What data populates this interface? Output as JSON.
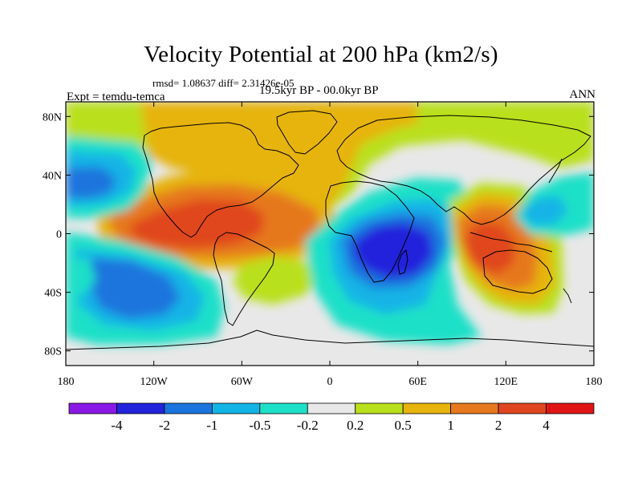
{
  "title": "Velocity Potential at 200 hPa (km2/s)",
  "stats": "rmsd= 1.08637 diff= 2.31426e-05",
  "experiment": "Expt = temdu-temca",
  "period": "19.5kyr BP - 00.0kyr BP",
  "season": "ANN",
  "map": {
    "projection": "cylindrical-equidistant",
    "lon_range": [
      -180,
      180
    ],
    "lat_range": [
      -90,
      90
    ],
    "lat_ticks": [
      {
        "value": 80,
        "label": "80N"
      },
      {
        "value": 40,
        "label": "40N"
      },
      {
        "value": 0,
        "label": "0"
      },
      {
        "value": -40,
        "label": "40S"
      },
      {
        "value": -80,
        "label": "80S"
      }
    ],
    "lon_ticks": [
      {
        "value": -180,
        "label": "180"
      },
      {
        "value": -120,
        "label": "120W"
      },
      {
        "value": -60,
        "label": "60W"
      },
      {
        "value": 0,
        "label": "0"
      },
      {
        "value": 60,
        "label": "60E"
      },
      {
        "value": 120,
        "label": "120E"
      },
      {
        "value": 180,
        "label": "180"
      }
    ],
    "background_level": "-0.2 to 0.2",
    "anomaly_centers": [
      {
        "name": "eastern-pacific-americas-positive",
        "lon": -95,
        "lat": 5,
        "max_level": "2 to 4",
        "sign": "positive"
      },
      {
        "name": "maritime-continent-positive",
        "lon": 113,
        "lat": -5,
        "max_level": "2 to 4",
        "sign": "positive"
      },
      {
        "name": "northern-high-latitude-positive",
        "lon": -50,
        "lat": 70,
        "max_level": "0.5 to 1",
        "sign": "positive"
      },
      {
        "name": "indian-ocean-negative",
        "lon": 45,
        "lat": -10,
        "max_level": "-4 to -2",
        "sign": "negative"
      },
      {
        "name": "south-pacific-negative",
        "lon": -150,
        "lat": -40,
        "max_level": "-2 to -1",
        "sign": "negative"
      },
      {
        "name": "north-pacific-negative",
        "lon": -165,
        "lat": 38,
        "max_level": "-2 to -1",
        "sign": "negative"
      },
      {
        "name": "northwest-pacific-negative",
        "lon": 150,
        "lat": 18,
        "max_level": "-1 to -0.5",
        "sign": "negative"
      }
    ]
  },
  "colorbar": {
    "colors": [
      "#8a19e6",
      "#2323dc",
      "#1a74dd",
      "#12b4e6",
      "#1ee0c8",
      "#e8e8e8",
      "#b9e01c",
      "#e6b40c",
      "#e6781e",
      "#e0461e",
      "#e01414"
    ],
    "labels": [
      "-4",
      "-2",
      "-1",
      "-0.5",
      "-0.2",
      "0.2",
      "0.5",
      "1",
      "2",
      "4"
    ]
  }
}
